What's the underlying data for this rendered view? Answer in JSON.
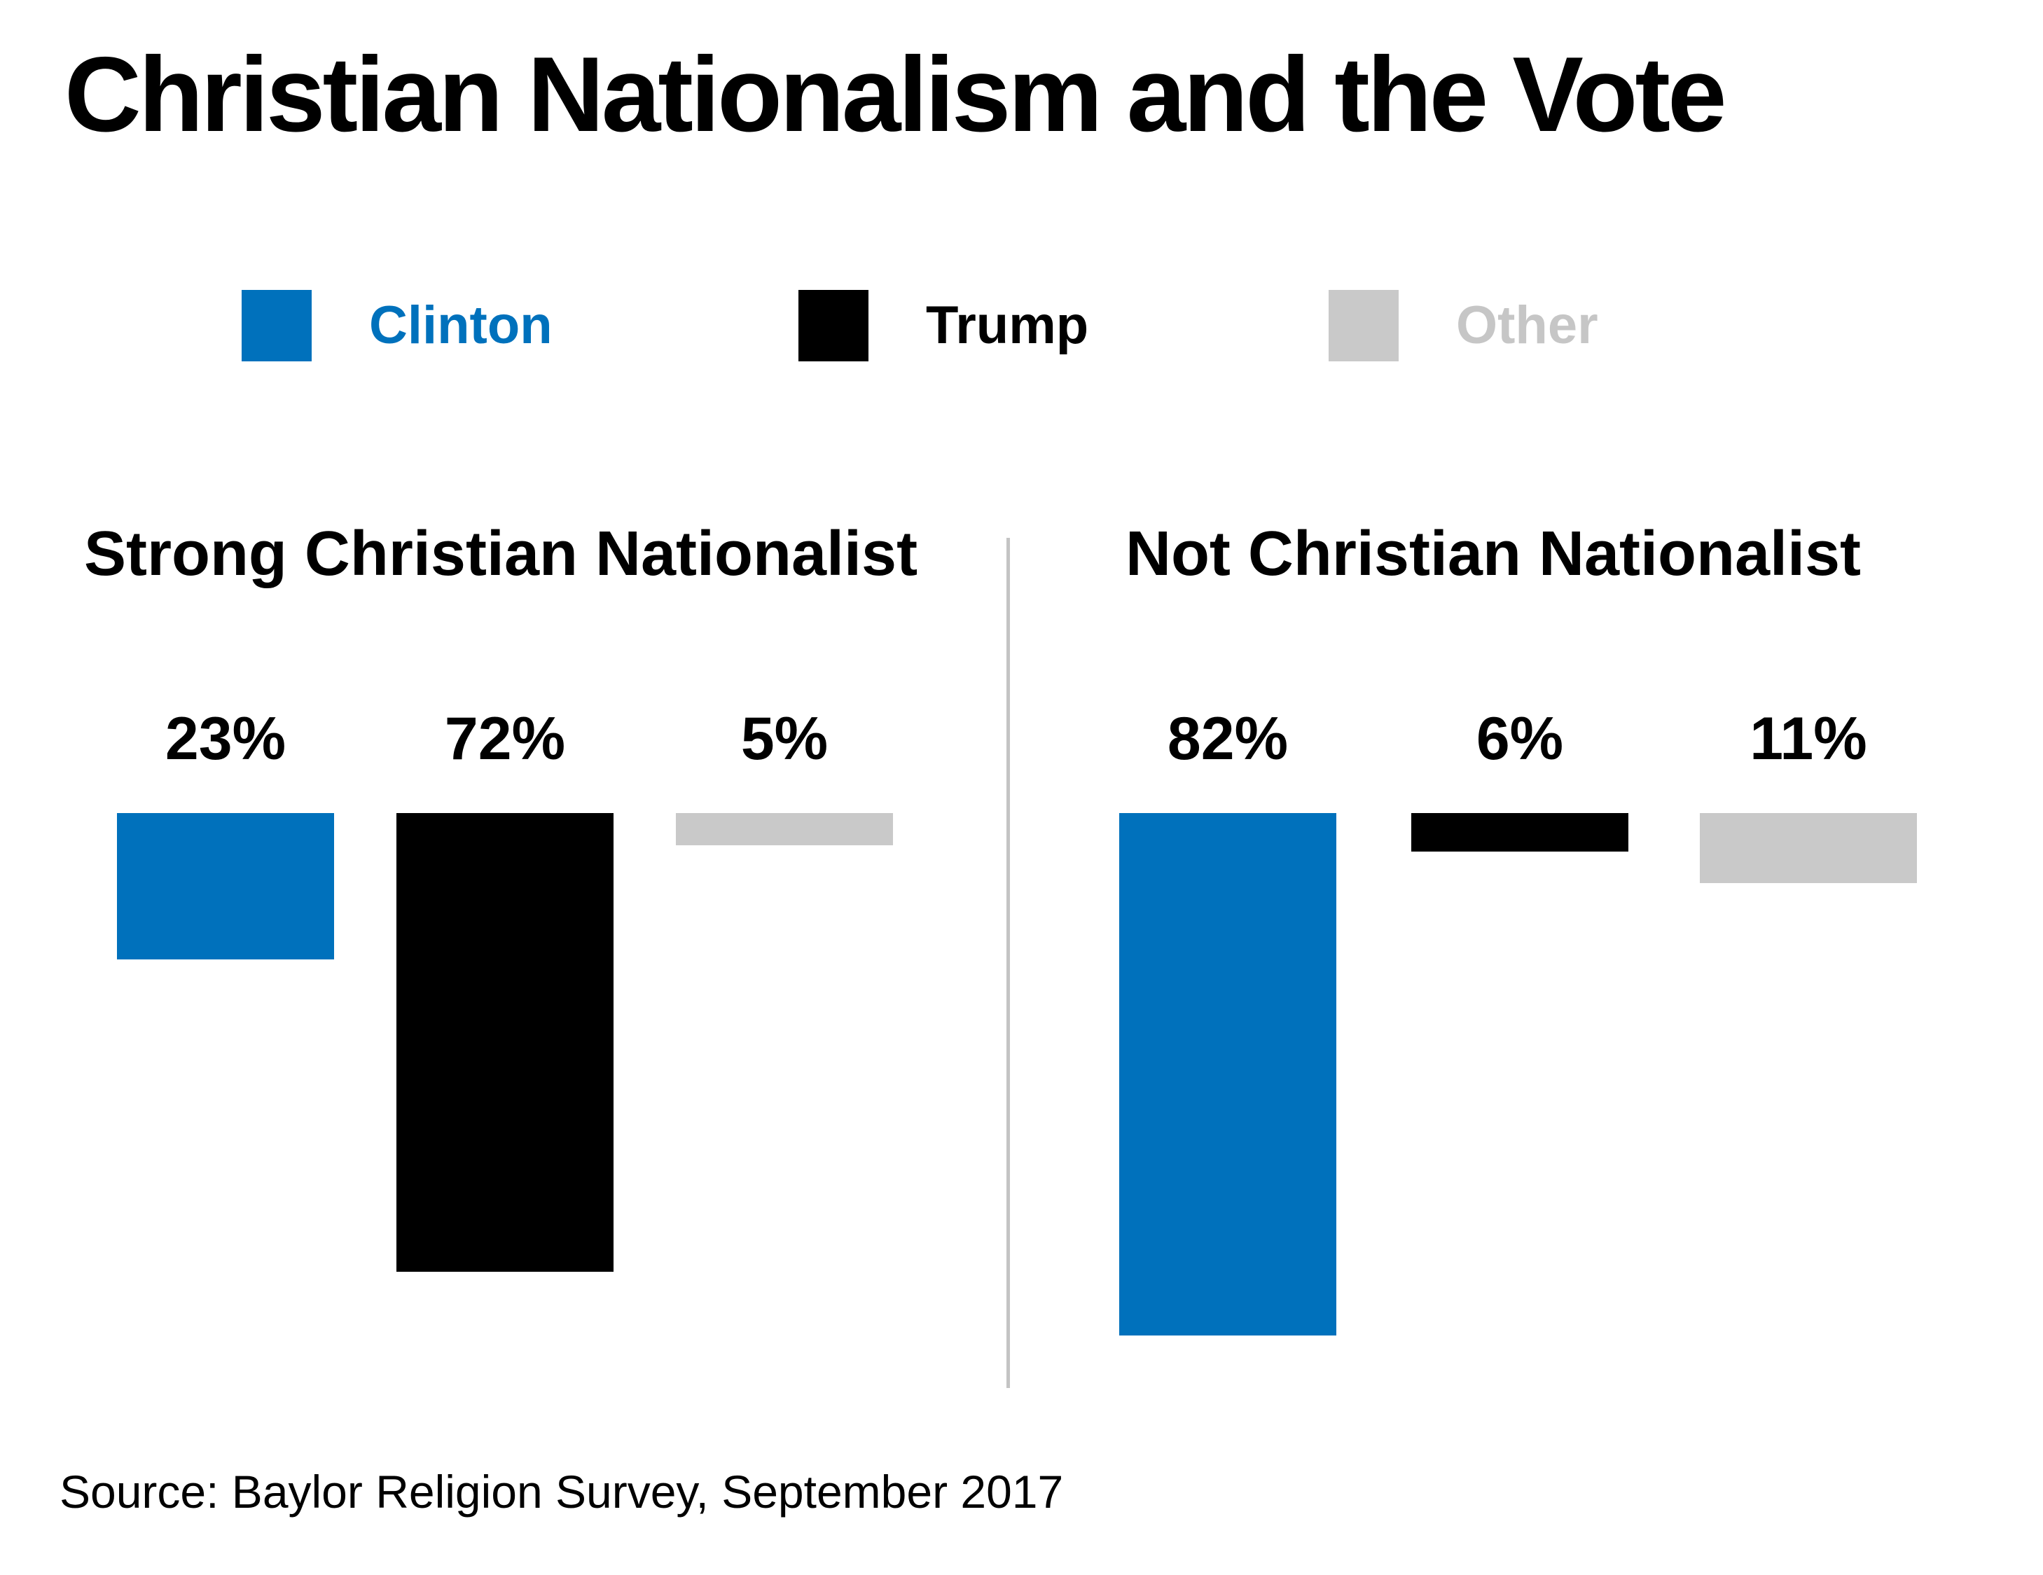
{
  "title": "Christian Nationalism and the Vote",
  "source": "Source: Baylor Religion Survey, September 2017",
  "colors": {
    "clinton_blue": "#0071BC",
    "trump_black": "#000000",
    "other_gray": "#C9C9C9",
    "divider_gray": "#C4C4C4",
    "background": "#FFFFFF",
    "text": "#000000"
  },
  "legend": [
    {
      "label": "Clinton",
      "color": "#0071BC",
      "label_color": "#0071BC"
    },
    {
      "label": "Trump",
      "color": "#000000",
      "label_color": "#000000"
    },
    {
      "label": "Other",
      "color": "#C9C9C9",
      "label_color": "#C6C6C6"
    }
  ],
  "chart_data": {
    "type": "bar",
    "orientation": "downward-from-top-baseline",
    "unit": "%",
    "title": "Christian Nationalism and the Vote",
    "legend_position": "top",
    "grid": false,
    "ylim": [
      0,
      100
    ],
    "series_names": [
      "Clinton",
      "Trump",
      "Other"
    ],
    "panels": [
      {
        "title": "Strong Christian Nationalist",
        "categories": [
          "Clinton",
          "Trump",
          "Other"
        ],
        "values": [
          23,
          72,
          5
        ],
        "labels": [
          "23%",
          "72%",
          "5%"
        ]
      },
      {
        "title": "Not Christian Nationalist",
        "categories": [
          "Clinton",
          "Trump",
          "Other"
        ],
        "values": [
          82,
          6,
          11
        ],
        "labels": [
          "82%",
          "6%",
          "11%"
        ]
      }
    ]
  }
}
